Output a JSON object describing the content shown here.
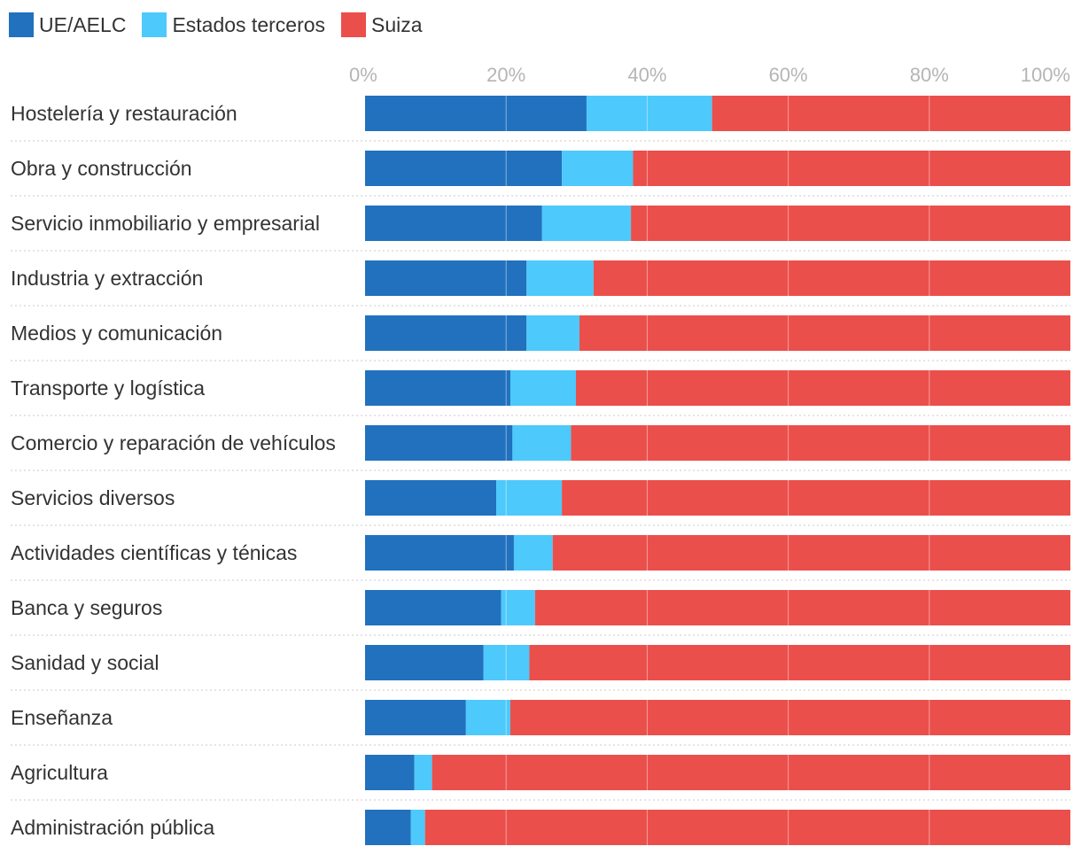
{
  "chart_data": {
    "type": "bar",
    "orientation": "horizontal",
    "stacked": true,
    "categories": [
      "Hostelería y restauración",
      "Obra y construcción",
      "Servicio inmobiliario y empresarial",
      "Industria y extracción",
      "Medios y comunicación",
      "Transporte y logística",
      "Comercio y reparación de vehículos",
      "Servicios diversos",
      "Actividades científicas y ténicas",
      "Banca y seguros",
      "Sanidad y social",
      "Enseñanza",
      "Agricultura",
      "Administración pública"
    ],
    "series": [
      {
        "name": "UE/AELC",
        "color": "#2171be",
        "values": [
          31.4,
          27.9,
          25.1,
          22.9,
          22.9,
          20.6,
          20.9,
          18.6,
          21.1,
          19.3,
          16.8,
          14.3,
          7.0,
          6.5
        ]
      },
      {
        "name": "Estados terceros",
        "color": "#4dc9fb",
        "values": [
          17.8,
          10.1,
          12.6,
          9.5,
          7.5,
          9.3,
          8.3,
          9.3,
          5.5,
          4.8,
          6.5,
          6.3,
          2.5,
          2.0
        ]
      },
      {
        "name": "Suiza",
        "color": "#eb4f4b",
        "values": [
          50.8,
          62.0,
          62.3,
          67.6,
          69.6,
          70.1,
          70.8,
          72.1,
          73.4,
          75.9,
          76.7,
          79.4,
          90.5,
          91.5
        ]
      }
    ],
    "xlim": [
      0,
      100
    ],
    "xticks": [
      "0%",
      "20%",
      "40%",
      "60%",
      "80%",
      "100%"
    ],
    "grid": true,
    "legend_position": "top-left"
  }
}
